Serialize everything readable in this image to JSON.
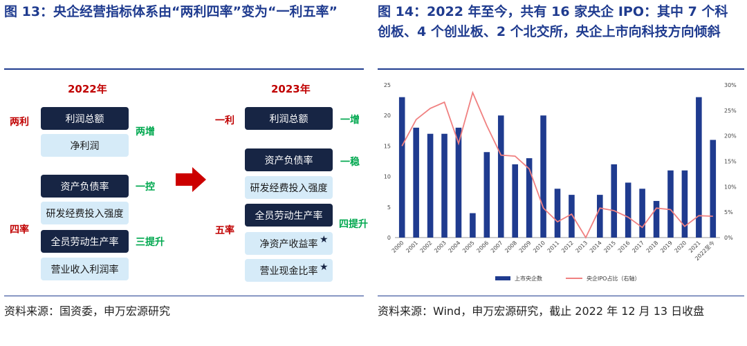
{
  "left": {
    "title": "图 13：央企经营指标体系由“两利四率”变为“一利五率”",
    "source": "资料来源：国资委，申万宏源研究",
    "year_2022": "2022年",
    "year_2023": "2023年",
    "group_2022_top": "两利",
    "group_2022_bottom": "四率",
    "group_2023_top": "一利",
    "group_2023_bottom": "五率",
    "items_2022": [
      "利润总额",
      "净利润",
      "资产负债率",
      "研发经费投入强度",
      "全员劳动生产率",
      "营业收入利润率"
    ],
    "items_2023": [
      "利润总额",
      "资产负债率",
      "研发经费投入强度",
      "全员劳动生产率",
      "净资产收益率",
      "营业现金比率"
    ],
    "tags_2022": [
      "两增",
      "一控",
      "三提升"
    ],
    "tags_2023": [
      "一增",
      "一稳",
      "四提升"
    ],
    "star": "★",
    "colors": {
      "dark_box": "#172544",
      "light_box": "#d6ebf8",
      "red": "#c00000",
      "green": "#00a84f",
      "arrow": "#cc0000"
    }
  },
  "right": {
    "title": "图 14：2022 年至今，共有 16 家央企 IPO：其中 7 个科创板、4 个创业板、2 个北交所，央企上市向科技方向倾斜",
    "source": "资料来源：Wind，申万宏源研究，截止 2022 年 12 月 13 日收盘"
  },
  "chart_data": {
    "type": "bar",
    "categories": [
      "2000",
      "2001",
      "2002",
      "2003",
      "2004",
      "2005",
      "2006",
      "2007",
      "2008",
      "2009",
      "2010",
      "2011",
      "2012",
      "2013",
      "2014",
      "2015",
      "2016",
      "2017",
      "2018",
      "2019",
      "2020",
      "2021",
      "2022至今"
    ],
    "series": [
      {
        "name": "上市央企数",
        "type": "bar",
        "axis": "left",
        "color": "#1f3b8f",
        "values": [
          23,
          18,
          17,
          17,
          18,
          4,
          14,
          20,
          12,
          13,
          20,
          8,
          7,
          0,
          7,
          12,
          9,
          8,
          6,
          11,
          11,
          23,
          16
        ]
      },
      {
        "name": "央企IPO占比（右轴）",
        "type": "line",
        "axis": "right",
        "color": "#f08080",
        "values": [
          0.18,
          0.232,
          0.254,
          0.266,
          0.185,
          0.285,
          0.22,
          0.162,
          0.16,
          0.135,
          0.058,
          0.031,
          0.046,
          0.0,
          0.058,
          0.053,
          0.04,
          0.02,
          0.058,
          0.055,
          0.022,
          0.043,
          0.042
        ]
      }
    ],
    "ylim": [
      0,
      25
    ],
    "yticks": [
      "0",
      "5",
      "10",
      "15",
      "20",
      "25"
    ],
    "y2lim": [
      0,
      0.3
    ],
    "y2ticks": [
      "0%",
      "5%",
      "10%",
      "15%",
      "20%",
      "25%",
      "30%"
    ],
    "legend": [
      "上市央企数",
      "央企IPO占比（右轴）"
    ],
    "legend_position": "bottom",
    "grid": false
  }
}
